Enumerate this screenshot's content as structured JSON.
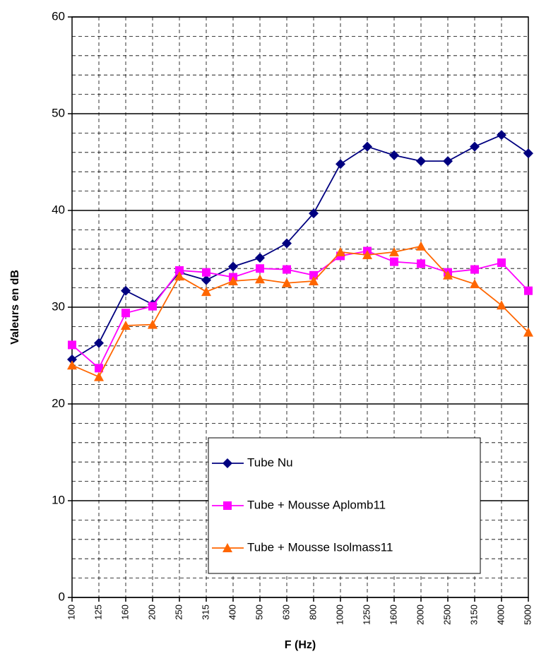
{
  "chart_data": {
    "type": "line",
    "xlabel": "F (Hz)",
    "ylabel": "Valeurs  en dB",
    "categories": [
      "100",
      "125",
      "160",
      "200",
      "250",
      "315",
      "400",
      "500",
      "630",
      "800",
      "1000",
      "1250",
      "1600",
      "2000",
      "2500",
      "3150",
      "4000",
      "5000"
    ],
    "series": [
      {
        "name": "Tube Nu",
        "color": "#000080",
        "marker": "diamond",
        "values": [
          24.6,
          26.3,
          31.7,
          30.3,
          33.6,
          32.8,
          34.2,
          35.1,
          36.6,
          39.7,
          44.8,
          46.6,
          45.7,
          45.1,
          45.1,
          46.6,
          47.8,
          45.9
        ]
      },
      {
        "name": "Tube + Mousse Aplomb11",
        "color": "#ff00ff",
        "marker": "square",
        "values": [
          26.1,
          23.7,
          29.4,
          30.1,
          33.8,
          33.6,
          33.1,
          34.0,
          33.9,
          33.3,
          35.3,
          35.8,
          34.7,
          34.5,
          33.6,
          33.9,
          34.6,
          31.7
        ]
      },
      {
        "name": "Tube + Mousse Isolmass11",
        "color": "#ff6600",
        "marker": "triangle",
        "values": [
          24.0,
          22.8,
          28.1,
          28.2,
          33.2,
          31.6,
          32.7,
          32.9,
          32.5,
          32.7,
          35.7,
          35.4,
          35.7,
          36.3,
          33.3,
          32.4,
          30.2,
          27.4
        ]
      }
    ],
    "ylim": [
      0,
      60
    ],
    "yticks": [
      0,
      10,
      20,
      30,
      40,
      50,
      60
    ],
    "grid": true
  }
}
